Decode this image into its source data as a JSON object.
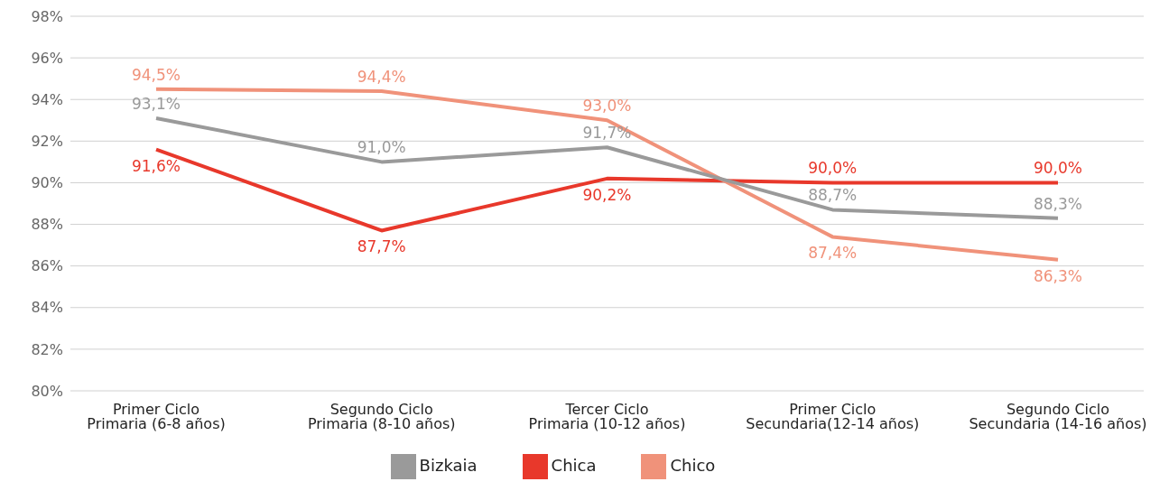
{
  "chart_data": {
    "type": "line",
    "categories": [
      "Primer Ciclo\nPrimaria (6-8 años)",
      "Segundo Ciclo\nPrimaria (8-10 años)",
      "Tercer Ciclo\nPrimaria (10-12 años)",
      "Primer Ciclo\nSecundaria(12-14 años)",
      "Segundo Ciclo\nSecundaria (14-16 años)"
    ],
    "series": [
      {
        "name": "Chica",
        "color": "#e8382b",
        "values": [
          91.6,
          87.7,
          90.2,
          90.0,
          90.0
        ],
        "value_labels": [
          "91,6%",
          "87,7%",
          "90,2%",
          "90,0%",
          "90,0%"
        ]
      },
      {
        "name": "Chico",
        "color": "#f0927a",
        "values": [
          94.5,
          94.4,
          93.0,
          87.4,
          86.3
        ],
        "value_labels": [
          "94,5%",
          "94,4%",
          "93,0%",
          "87,4%",
          "86,3%"
        ]
      },
      {
        "name": "Bizkaia",
        "color": "#9a9a9a",
        "values": [
          93.1,
          91.0,
          91.7,
          88.7,
          88.3
        ],
        "value_labels": [
          "93,1%",
          "91,0%",
          "91,7%",
          "88,7%",
          "88,3%"
        ]
      }
    ],
    "ylim": [
      80,
      98
    ],
    "yticks": [
      {
        "value": 80,
        "label": "80%"
      },
      {
        "value": 82,
        "label": "82%"
      },
      {
        "value": 84,
        "label": "84%"
      },
      {
        "value": 86,
        "label": "86%"
      },
      {
        "value": 88,
        "label": "88%"
      },
      {
        "value": 90,
        "label": "90%"
      },
      {
        "value": 92,
        "label": "92%"
      },
      {
        "value": 94,
        "label": "94%"
      },
      {
        "value": 96,
        "label": "96%"
      },
      {
        "value": 98,
        "label": "98%"
      }
    ],
    "grid": "y",
    "legend": "bottom",
    "marker": "none",
    "line_style": "solid"
  }
}
